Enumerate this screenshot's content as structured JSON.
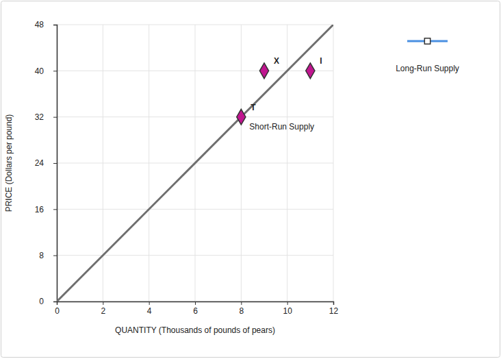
{
  "chart_data": {
    "type": "scatter",
    "x_label": "QUANTITY (Thousands of pounds of pears)",
    "y_label": "PRICE (Dollars per pound)",
    "xlim": [
      0,
      12
    ],
    "ylim": [
      0,
      48
    ],
    "xticks": [
      0,
      2,
      4,
      6,
      8,
      10,
      12
    ],
    "yticks": [
      0,
      8,
      16,
      24,
      32,
      40,
      48
    ],
    "grid": true,
    "legend": "right",
    "series": [
      {
        "type": "line",
        "color": "#6e6e6e",
        "x": [
          0,
          12
        ],
        "values": [
          0,
          48
        ]
      },
      {
        "type": "scatter",
        "color": "#c0158f",
        "marker": "diamond",
        "x": [
          8,
          9,
          11
        ],
        "values": [
          32,
          40,
          40
        ],
        "point_labels": [
          "T",
          "X",
          "I"
        ]
      },
      {
        "type": "line",
        "name": "Long-Run Supply",
        "color": "#4a90e2",
        "marker": "square",
        "x": [],
        "values": []
      }
    ],
    "annotations": [
      {
        "text": "Short-Run Supply",
        "x": 8,
        "y": 32
      }
    ]
  }
}
